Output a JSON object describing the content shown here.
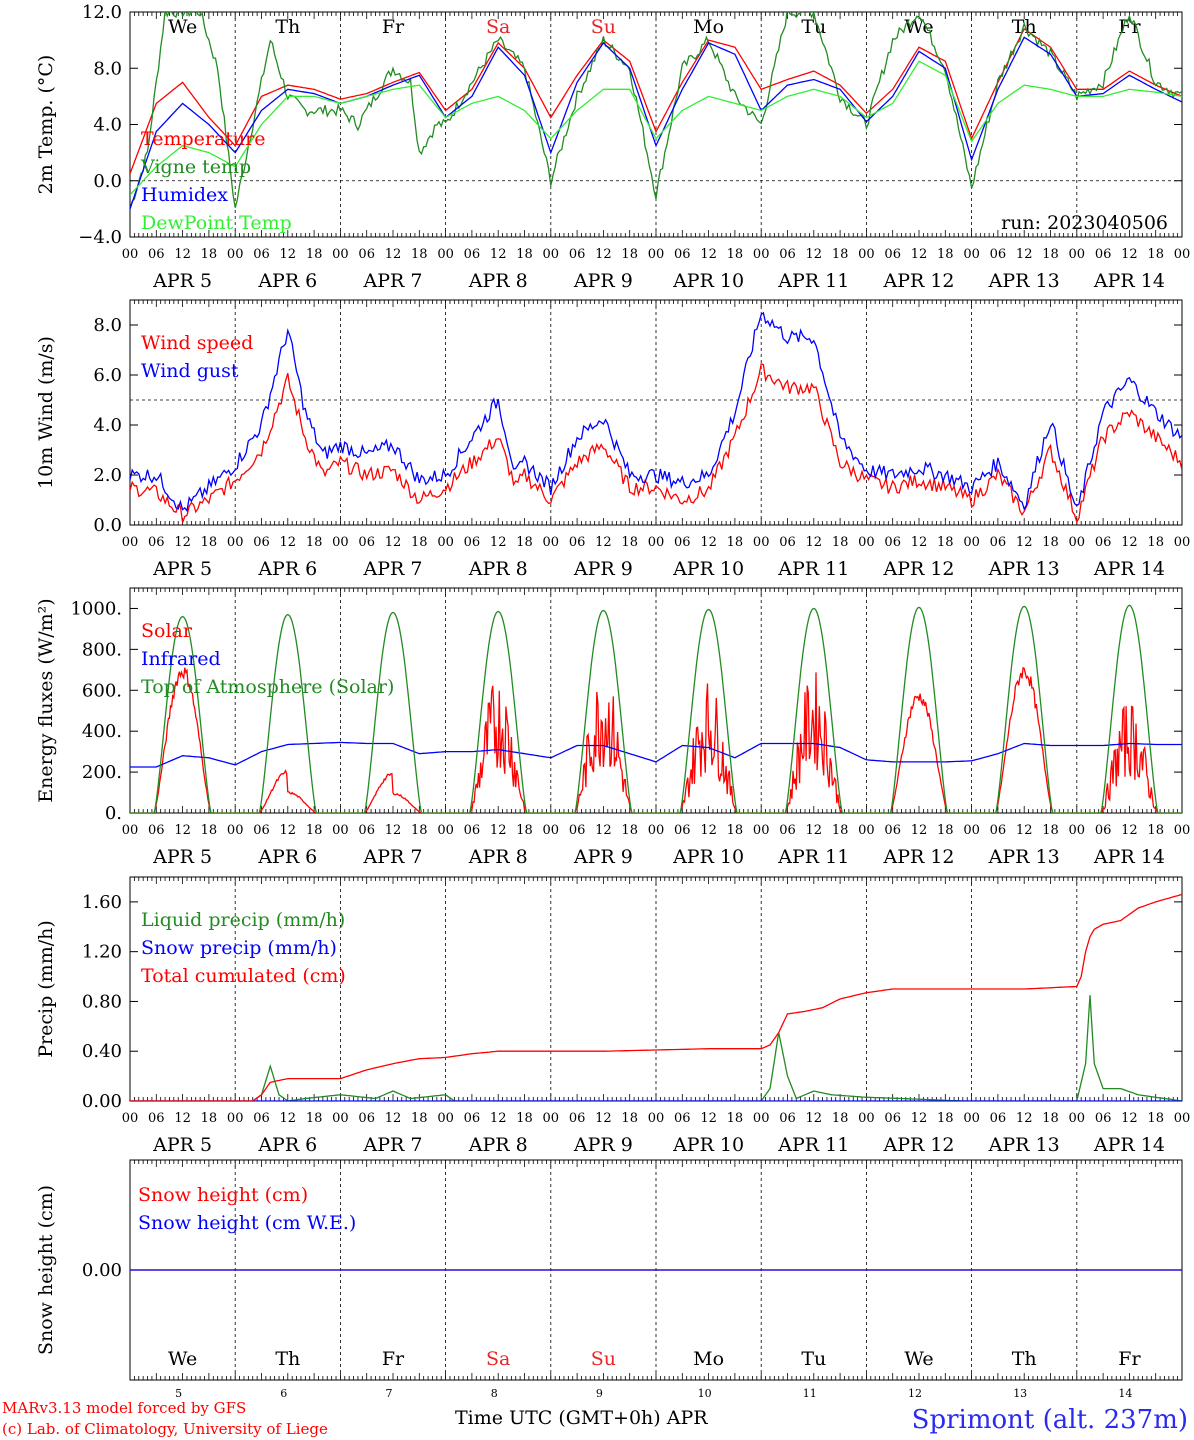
{
  "footer": {
    "credit_line1": "MARv3.13 model forced by GFS",
    "credit_line2": "(c) Lab. of Climatology, University of Liege",
    "xlabel": "Time UTC (GMT+0h) APR",
    "station": "Sprimont (alt. 237m)"
  },
  "hour_tick_labels": [
    "00",
    "06",
    "12",
    "18"
  ],
  "end_tick_label": "00",
  "days": [
    "APR  5",
    "APR  6",
    "APR  7",
    "APR  8",
    "APR  9",
    "APR 10",
    "APR 11",
    "APR 12",
    "APR 13",
    "APR 14"
  ],
  "day_numbers": [
    "5",
    "6",
    "7",
    "8",
    "9",
    "10",
    "11",
    "12",
    "13",
    "14"
  ],
  "weekdays": [
    {
      "label": "We",
      "color": "#000000"
    },
    {
      "label": "Th",
      "color": "#000000"
    },
    {
      "label": "Fr",
      "color": "#000000"
    },
    {
      "label": "Sa",
      "color": "#e8262a"
    },
    {
      "label": "Su",
      "color": "#e8262a"
    },
    {
      "label": "Mo",
      "color": "#000000"
    },
    {
      "label": "Tu",
      "color": "#000000"
    },
    {
      "label": "We",
      "color": "#000000"
    },
    {
      "label": "Th",
      "color": "#000000"
    },
    {
      "label": "Fr",
      "color": "#000000"
    }
  ],
  "colors": {
    "red": "#ff0000",
    "green": "#228b22",
    "blue": "#0000ff",
    "lightgreen": "#33ee33",
    "purple": "#7a1fa2",
    "station": "#2b2bf0"
  },
  "chart_data": [
    {
      "type": "line",
      "ylabel": "2m Temp. (°C)",
      "ylim": [
        -4,
        12
      ],
      "yticks": [
        "-4.0",
        "0.0",
        "4.0",
        "8.0",
        "12.0"
      ],
      "ref_lines": [
        0
      ],
      "run": "run: 2023040506",
      "x_unit": "hours since Apr 5 00UTC",
      "series": [
        {
          "name": "Temperature",
          "color": "#ff0000",
          "x": [
            0,
            6,
            12,
            18,
            24,
            30,
            36,
            42,
            48,
            54,
            60,
            66,
            72,
            78,
            84,
            90,
            96,
            102,
            108,
            114,
            120,
            126,
            132,
            138,
            144,
            150,
            156,
            162,
            168,
            174,
            180,
            186,
            192,
            198,
            204,
            210,
            216,
            222,
            228,
            234,
            240
          ],
          "values": [
            0.5,
            5.5,
            7.0,
            4.5,
            2.5,
            6.0,
            6.8,
            6.5,
            5.8,
            6.2,
            7.0,
            7.7,
            5.0,
            6.5,
            9.8,
            8.0,
            4.5,
            7.5,
            10.0,
            8.5,
            3.5,
            7.0,
            10.0,
            9.5,
            6.5,
            7.2,
            7.8,
            6.8,
            4.8,
            6.5,
            9.5,
            8.5,
            3.0,
            7.0,
            10.8,
            9.5,
            6.5,
            6.5,
            7.8,
            6.8,
            6.0
          ]
        },
        {
          "name": "Vigne temp",
          "color": "#228b22",
          "x": [
            0,
            4,
            8,
            12,
            16,
            20,
            24,
            28,
            32,
            36,
            40,
            44,
            48,
            52,
            56,
            60,
            64,
            66,
            70,
            72,
            78,
            84,
            90,
            96,
            102,
            108,
            114,
            120,
            126,
            132,
            138,
            144,
            150,
            156,
            162,
            168,
            174,
            180,
            186,
            192,
            198,
            204,
            210,
            216,
            222,
            228,
            234,
            240
          ],
          "values": [
            -2,
            2,
            12,
            12,
            12,
            8,
            -2,
            4,
            10,
            6,
            5,
            5,
            5,
            4,
            6,
            8,
            7,
            2,
            4,
            4,
            7,
            10,
            8,
            0,
            6,
            10,
            8,
            -1,
            8,
            10,
            6,
            4,
            12,
            12,
            6,
            4,
            10,
            12,
            8,
            -0.5,
            7,
            11,
            9,
            6,
            7,
            12,
            7,
            6
          ]
        },
        {
          "name": "Humidex",
          "color": "#0000ff",
          "x": [
            0,
            6,
            12,
            18,
            24,
            30,
            36,
            42,
            48,
            54,
            60,
            66,
            72,
            78,
            84,
            90,
            96,
            102,
            108,
            114,
            120,
            126,
            132,
            138,
            144,
            150,
            156,
            162,
            168,
            174,
            180,
            186,
            192,
            198,
            204,
            210,
            216,
            222,
            228,
            234,
            240
          ],
          "values": [
            -2.0,
            3.5,
            5.5,
            4.0,
            2.0,
            5.0,
            6.5,
            6.2,
            5.5,
            6.0,
            6.8,
            7.5,
            4.5,
            6.0,
            9.5,
            7.5,
            2.0,
            7.0,
            9.8,
            8.0,
            2.5,
            6.5,
            9.8,
            9.0,
            5.0,
            6.8,
            7.2,
            6.5,
            4.2,
            6.0,
            9.2,
            8.0,
            1.5,
            6.5,
            10.2,
            9.0,
            6.0,
            6.2,
            7.5,
            6.5,
            5.6
          ]
        },
        {
          "name": "DewPoint Temp",
          "color": "#33ee33",
          "x": [
            0,
            6,
            12,
            18,
            24,
            30,
            36,
            42,
            48,
            54,
            60,
            66,
            72,
            78,
            84,
            90,
            96,
            102,
            108,
            114,
            120,
            126,
            132,
            138,
            144,
            150,
            156,
            162,
            168,
            174,
            180,
            186,
            192,
            198,
            204,
            210,
            216,
            222,
            228,
            234,
            240
          ],
          "values": [
            -1.0,
            1.0,
            2.5,
            2.0,
            1.0,
            4.0,
            6.0,
            6.0,
            5.5,
            6.0,
            6.5,
            6.8,
            4.5,
            5.5,
            6.0,
            5.0,
            3.0,
            5.0,
            6.5,
            6.5,
            3.0,
            5.0,
            6.0,
            5.5,
            5.0,
            6.0,
            6.5,
            6.0,
            4.5,
            5.5,
            8.5,
            7.5,
            2.8,
            5.5,
            6.8,
            6.5,
            6.0,
            6.0,
            6.5,
            6.3,
            6.0
          ]
        }
      ]
    },
    {
      "type": "line",
      "ylabel": "10m Wind (m/s)",
      "ylim": [
        0,
        9
      ],
      "yticks": [
        "0.0",
        "2.0",
        "4.0",
        "6.0",
        "8.0"
      ],
      "ref_lines": [
        5
      ],
      "series": [
        {
          "name": "Wind speed",
          "color": "#ff0000",
          "x": [
            0,
            6,
            12,
            18,
            24,
            30,
            36,
            40,
            44,
            48,
            54,
            60,
            66,
            72,
            78,
            84,
            88,
            90,
            96,
            102,
            108,
            114,
            120,
            126,
            132,
            138,
            144,
            150,
            156,
            162,
            168,
            174,
            180,
            186,
            192,
            198,
            204,
            210,
            216,
            222,
            228,
            234,
            240
          ],
          "values": [
            1.5,
            1.3,
            0.4,
            1.0,
            1.8,
            3.0,
            5.8,
            3.5,
            2.0,
            2.5,
            2.0,
            2.2,
            1.0,
            1.5,
            2.5,
            3.5,
            1.5,
            2.0,
            1.0,
            2.5,
            3.2,
            1.5,
            1.5,
            1.0,
            1.4,
            3.5,
            6.2,
            5.5,
            5.5,
            2.5,
            1.8,
            1.5,
            1.8,
            1.5,
            1.0,
            2.0,
            0.5,
            3.0,
            0.3,
            3.5,
            4.5,
            3.5,
            2.5
          ]
        },
        {
          "name": "Wind gust",
          "color": "#0000ff",
          "x": [
            0,
            6,
            12,
            18,
            24,
            30,
            36,
            40,
            44,
            48,
            54,
            60,
            66,
            72,
            78,
            84,
            88,
            90,
            96,
            102,
            108,
            114,
            120,
            126,
            132,
            138,
            144,
            150,
            156,
            162,
            168,
            174,
            180,
            186,
            192,
            198,
            204,
            210,
            216,
            222,
            228,
            234,
            240
          ],
          "values": [
            2.0,
            2.0,
            0.6,
            1.5,
            2.4,
            4.0,
            7.8,
            4.5,
            2.8,
            3.2,
            2.8,
            3.2,
            1.8,
            2.0,
            3.5,
            5.0,
            2.0,
            2.5,
            1.5,
            3.5,
            4.3,
            2.0,
            2.0,
            1.7,
            2.0,
            4.5,
            8.5,
            7.5,
            7.5,
            3.5,
            2.2,
            2.0,
            2.3,
            2.0,
            1.5,
            2.5,
            0.8,
            4.2,
            0.5,
            4.5,
            5.8,
            4.5,
            3.5
          ]
        }
      ]
    },
    {
      "type": "line",
      "ylabel": "Energy fluxes (W/m²)",
      "ylim": [
        0,
        1100
      ],
      "yticks": [
        "0.",
        "200.",
        "400.",
        "600.",
        "800.",
        "1000."
      ],
      "series": [
        {
          "name": "Solar",
          "color": "#ff0000",
          "peaks": [
            730,
            210,
            200,
            680,
            720,
            660,
            700,
            600,
            730,
            560
          ]
        },
        {
          "name": "Infrared",
          "color": "#0000ff",
          "x": [
            0,
            6,
            12,
            18,
            24,
            30,
            36,
            42,
            48,
            54,
            60,
            66,
            72,
            78,
            84,
            90,
            96,
            102,
            108,
            114,
            120,
            126,
            132,
            138,
            144,
            150,
            156,
            162,
            168,
            174,
            180,
            186,
            192,
            198,
            204,
            210,
            216,
            222,
            228,
            234,
            240
          ],
          "values": [
            225,
            225,
            280,
            270,
            235,
            300,
            335,
            340,
            345,
            340,
            340,
            290,
            300,
            300,
            310,
            290,
            270,
            330,
            330,
            290,
            250,
            330,
            320,
            270,
            340,
            340,
            340,
            320,
            260,
            250,
            250,
            250,
            255,
            290,
            340,
            330,
            330,
            330,
            340,
            335,
            335
          ]
        },
        {
          "name": "Top of Atmosphere (Solar)",
          "color": "#228b22",
          "peaks": [
            960,
            970,
            980,
            985,
            990,
            995,
            1000,
            1005,
            1010,
            1015
          ]
        }
      ]
    },
    {
      "type": "line",
      "ylabel": "Precip (mm/h)",
      "ylim": [
        0,
        1.8
      ],
      "yticks": [
        "0.00",
        "0.40",
        "0.80",
        "1.20",
        "1.60"
      ],
      "series": [
        {
          "name": "Liquid precip (mm/h)",
          "color": "#228b22",
          "x": [
            0,
            28,
            30,
            32,
            34,
            36,
            40,
            48,
            56,
            60,
            64,
            72,
            74,
            76,
            144,
            146,
            148,
            150,
            152,
            156,
            160,
            168,
            176,
            190,
            216,
            218,
            219,
            220,
            222,
            226,
            230,
            240
          ],
          "values": [
            0,
            0,
            0.05,
            0.28,
            0.05,
            0,
            0.02,
            0.05,
            0.02,
            0.08,
            0.02,
            0.05,
            0,
            0,
            0,
            0.1,
            0.55,
            0.2,
            0.02,
            0.08,
            0.05,
            0.03,
            0.02,
            0,
            0,
            0.3,
            0.85,
            0.3,
            0.1,
            0.1,
            0.05,
            0
          ]
        },
        {
          "name": "Snow precip (mm/h)",
          "color": "#0000ff",
          "x": [
            0,
            240
          ],
          "values": [
            0,
            0
          ]
        },
        {
          "name": "Total cumulated (cm)",
          "color": "#ff0000",
          "x": [
            0,
            28,
            30,
            32,
            36,
            48,
            54,
            60,
            66,
            72,
            78,
            84,
            96,
            108,
            120,
            132,
            144,
            146,
            148,
            150,
            154,
            158,
            162,
            168,
            174,
            180,
            192,
            204,
            216,
            217,
            218,
            219,
            220,
            222,
            226,
            230,
            234,
            240
          ],
          "values": [
            0,
            0,
            0.05,
            0.15,
            0.18,
            0.18,
            0.25,
            0.3,
            0.34,
            0.35,
            0.38,
            0.4,
            0.4,
            0.4,
            0.41,
            0.42,
            0.42,
            0.45,
            0.55,
            0.7,
            0.72,
            0.75,
            0.82,
            0.87,
            0.9,
            0.9,
            0.9,
            0.9,
            0.92,
            1.0,
            1.2,
            1.32,
            1.38,
            1.42,
            1.45,
            1.55,
            1.6,
            1.66
          ]
        }
      ]
    },
    {
      "type": "line",
      "ylabel": "Snow height (cm)",
      "ylim": [
        -1,
        1
      ],
      "yticks": [
        "0.00"
      ],
      "series": [
        {
          "name": "Snow height (cm)",
          "color": "#ff0000",
          "x": [
            0,
            240
          ],
          "values": [
            0,
            0
          ]
        },
        {
          "name": "Snow height (cm W.E.)",
          "color": "#0000ff",
          "x": [
            0,
            240
          ],
          "values": [
            0,
            0
          ]
        }
      ]
    }
  ]
}
